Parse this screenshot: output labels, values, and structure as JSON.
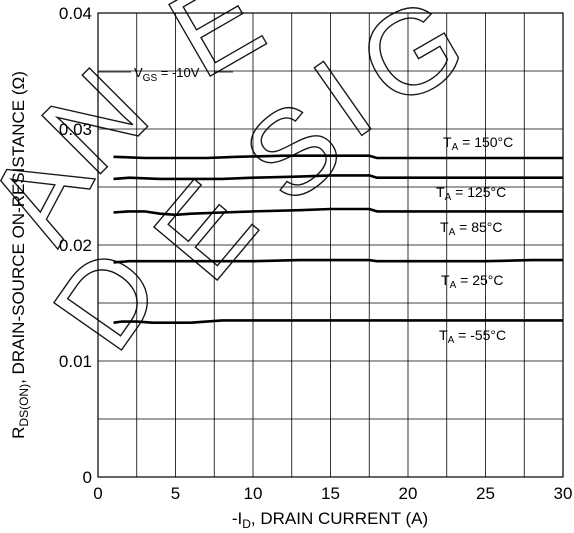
{
  "chart_data": {
    "type": "line",
    "xlabel_prefix": "-I",
    "xlabel_sub": "D",
    "xlabel_suffix": ", DRAIN CURRENT (A)",
    "ylabel_prefix": "R",
    "ylabel_sub": "DS(ON)",
    "ylabel_suffix": ",  DRAIN-SOURCE ON-RESISTANCE (Ω)",
    "xlim": [
      0,
      30
    ],
    "ylim": [
      0,
      0.04
    ],
    "x_ticks": [
      "0",
      "5",
      "10",
      "15",
      "20",
      "25",
      "30"
    ],
    "y_ticks": [
      "0",
      "0.01",
      "0.02",
      "0.03",
      "0.04"
    ],
    "grid": true,
    "annotation": {
      "prefix": "V",
      "sub": "GS",
      "suffix": " = -10V"
    },
    "series": [
      {
        "name": "TA = 150°C",
        "label_prefix": "T",
        "label_sub": "A",
        "label_suffix": " = 150°C",
        "x": [
          1,
          3,
          5,
          7,
          9,
          12,
          15,
          17.5,
          18,
          22,
          25,
          28,
          30
        ],
        "y": [
          0.0276,
          0.0275,
          0.0275,
          0.0275,
          0.0276,
          0.0277,
          0.0277,
          0.0277,
          0.0275,
          0.0275,
          0.0275,
          0.0275,
          0.0275
        ]
      },
      {
        "name": "TA = 125°C",
        "label_prefix": "T",
        "label_sub": "A",
        "label_suffix": " = 125°C",
        "x": [
          1,
          2,
          4,
          6,
          8,
          10,
          13,
          15,
          17.5,
          18,
          22,
          25,
          28,
          30
        ],
        "y": [
          0.0257,
          0.0258,
          0.0257,
          0.0257,
          0.0257,
          0.0258,
          0.0259,
          0.026,
          0.026,
          0.0258,
          0.0258,
          0.0258,
          0.0258,
          0.0258
        ]
      },
      {
        "name": "TA = 85°C",
        "label_prefix": "T",
        "label_sub": "A",
        "label_suffix": " = 85°C",
        "x": [
          1,
          2,
          3,
          4,
          5,
          6,
          8,
          10,
          13,
          15,
          17.5,
          18,
          22,
          25,
          28,
          30
        ],
        "y": [
          0.0228,
          0.0229,
          0.0229,
          0.0227,
          0.0226,
          0.0227,
          0.0228,
          0.0229,
          0.023,
          0.0231,
          0.0231,
          0.0229,
          0.0229,
          0.0229,
          0.0229,
          0.0229
        ]
      },
      {
        "name": "TA = 25°C",
        "label_prefix": "T",
        "label_sub": "A",
        "label_suffix": " = 25°C",
        "x": [
          1,
          2,
          4,
          6,
          8,
          10,
          13,
          17.5,
          18,
          22,
          25,
          28,
          30
        ],
        "y": [
          0.0185,
          0.0186,
          0.0186,
          0.0186,
          0.0186,
          0.0186,
          0.0187,
          0.0187,
          0.0186,
          0.0186,
          0.0186,
          0.0187,
          0.0187
        ]
      },
      {
        "name": "TA = -55°C",
        "label_prefix": "T",
        "label_sub": "A",
        "label_suffix": " = -55°C",
        "x": [
          1,
          1.5,
          2.5,
          3.5,
          6,
          8,
          10,
          15,
          20,
          25,
          30
        ],
        "y": [
          0.0133,
          0.0134,
          0.0134,
          0.0133,
          0.0133,
          0.0135,
          0.0135,
          0.0135,
          0.0135,
          0.0135,
          0.0135
        ]
      }
    ],
    "colors": {
      "line": "#000000",
      "grid": "#000000",
      "background": "#ffffff"
    }
  }
}
